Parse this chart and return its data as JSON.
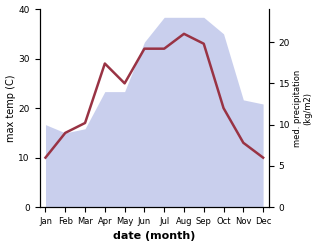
{
  "months": [
    "Jan",
    "Feb",
    "Mar",
    "Apr",
    "May",
    "Jun",
    "Jul",
    "Aug",
    "Sep",
    "Oct",
    "Nov",
    "Dec"
  ],
  "max_temp": [
    10,
    15,
    17,
    29,
    25,
    32,
    32,
    35,
    33,
    20,
    13,
    10
  ],
  "precip_mm": [
    10,
    9,
    9.5,
    14,
    14,
    20,
    23,
    23,
    23,
    21,
    13,
    12.5
  ],
  "temp_color": "#993344",
  "precip_fill_color": "#b8c0e8",
  "ylabel_left": "max temp (C)",
  "ylabel_right": "med. precipitation\n(kg/m2)",
  "xlabel": "date (month)",
  "ylim_left": [
    0,
    40
  ],
  "ylim_right": [
    0,
    24
  ],
  "xtick_labels": [
    "Jan",
    "Feb",
    "Mar",
    "Apr",
    "May",
    "Jun",
    "Jul",
    "Aug",
    "Sep",
    "Oct",
    "Nov",
    "Dec"
  ],
  "yticks_left": [
    0,
    10,
    20,
    30,
    40
  ],
  "yticks_right": [
    0,
    5,
    10,
    15,
    20
  ],
  "background_color": "#ffffff",
  "temp_linewidth": 1.8,
  "fill_alpha": 0.75
}
